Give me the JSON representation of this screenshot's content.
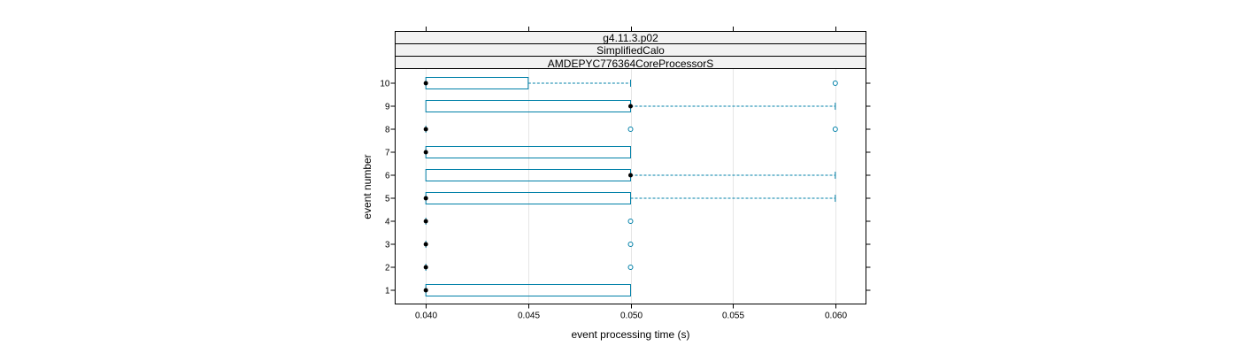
{
  "chart_data": {
    "type": "boxplot",
    "strips": [
      "g4.11.3.p02",
      "SimplifiedCalo",
      "AMDEPYC776364CoreProcessorS"
    ],
    "xlabel": "event processing time (s)",
    "ylabel": "event number",
    "xlim": [
      0.0385,
      0.0615
    ],
    "xticks": [
      "0.040",
      "0.045",
      "0.050",
      "0.055",
      "0.060"
    ],
    "xtick_values": [
      0.04,
      0.045,
      0.05,
      0.055,
      0.06
    ],
    "grid": true,
    "categories": [
      "1",
      "2",
      "3",
      "4",
      "5",
      "6",
      "7",
      "8",
      "9",
      "10"
    ],
    "boxes": [
      {
        "event": "1",
        "q1": 0.04,
        "median": 0.04,
        "q3": 0.05,
        "whisker_low": 0.04,
        "whisker_high": 0.05,
        "outliers": []
      },
      {
        "event": "2",
        "q1": 0.04,
        "median": 0.04,
        "q3": 0.04,
        "whisker_low": 0.04,
        "whisker_high": 0.04,
        "outliers": [
          0.05
        ]
      },
      {
        "event": "3",
        "q1": 0.04,
        "median": 0.04,
        "q3": 0.04,
        "whisker_low": 0.04,
        "whisker_high": 0.04,
        "outliers": [
          0.05
        ]
      },
      {
        "event": "4",
        "q1": 0.04,
        "median": 0.04,
        "q3": 0.04,
        "whisker_low": 0.04,
        "whisker_high": 0.04,
        "outliers": [
          0.05
        ]
      },
      {
        "event": "5",
        "q1": 0.04,
        "median": 0.04,
        "q3": 0.05,
        "whisker_low": 0.04,
        "whisker_high": 0.06,
        "outliers": []
      },
      {
        "event": "6",
        "q1": 0.04,
        "median": 0.05,
        "q3": 0.05,
        "whisker_low": 0.04,
        "whisker_high": 0.06,
        "outliers": []
      },
      {
        "event": "7",
        "q1": 0.04,
        "median": 0.04,
        "q3": 0.05,
        "whisker_low": 0.04,
        "whisker_high": 0.05,
        "outliers": []
      },
      {
        "event": "8",
        "q1": 0.04,
        "median": 0.04,
        "q3": 0.04,
        "whisker_low": 0.04,
        "whisker_high": 0.04,
        "outliers": [
          0.05,
          0.06
        ]
      },
      {
        "event": "9",
        "q1": 0.04,
        "median": 0.05,
        "q3": 0.05,
        "whisker_low": 0.04,
        "whisker_high": 0.06,
        "outliers": []
      },
      {
        "event": "10",
        "q1": 0.04,
        "median": 0.04,
        "q3": 0.045,
        "whisker_low": 0.04,
        "whisker_high": 0.05,
        "outliers": [
          0.06
        ]
      }
    ],
    "colors": {
      "box": "#0080a8",
      "median": "#000000",
      "strip_bg": "#f2f2f2"
    }
  }
}
